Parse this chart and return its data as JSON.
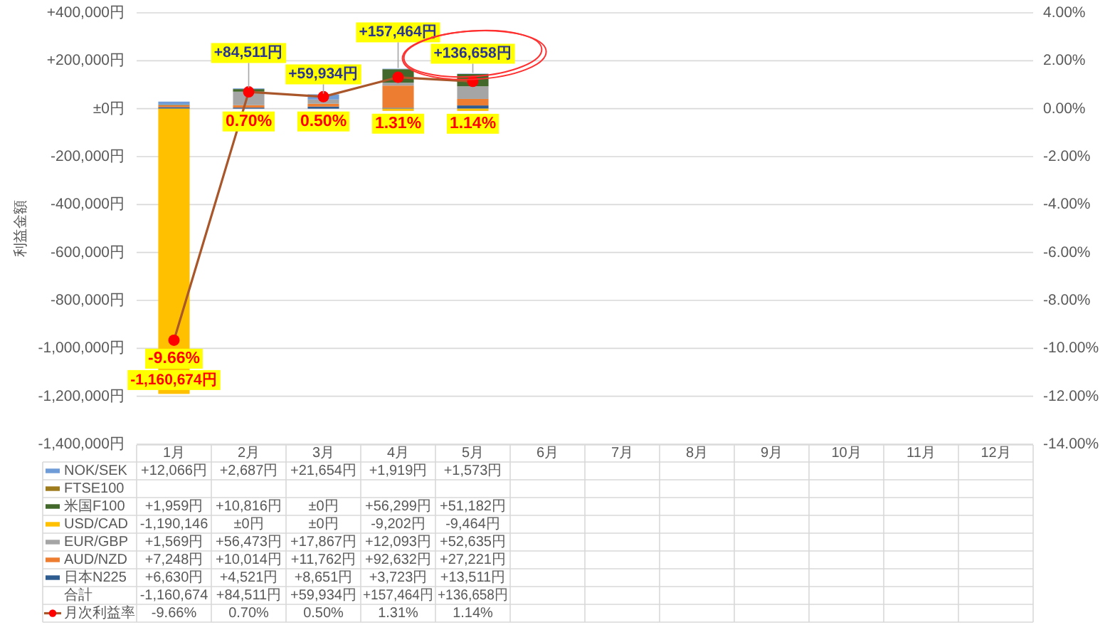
{
  "chart_data": {
    "type": "bar",
    "stacked": true,
    "ylabel": "利益金額",
    "categories": [
      "1月",
      "2月",
      "3月",
      "4月",
      "5月",
      "6月",
      "7月",
      "8月",
      "9月",
      "10月",
      "11月",
      "12月"
    ],
    "series": [
      {
        "name": "日本N225",
        "color": "#2e5c91",
        "values": [
          6630,
          4521,
          8651,
          3723,
          13511,
          null,
          null,
          null,
          null,
          null,
          null,
          null
        ],
        "value_labels": [
          "+6,630円",
          "+4,521円",
          "+8,651円",
          "+3,723円",
          "+13,511円",
          null,
          null,
          null,
          null,
          null,
          null,
          null
        ]
      },
      {
        "name": "AUD/NZD",
        "color": "#ed7d31",
        "values": [
          7248,
          10014,
          11762,
          92632,
          27221,
          null,
          null,
          null,
          null,
          null,
          null,
          null
        ],
        "value_labels": [
          "+7,248円",
          "+10,014円",
          "+11,762円",
          "+92,632円",
          "+27,221円",
          null,
          null,
          null,
          null,
          null,
          null,
          null
        ]
      },
      {
        "name": "EUR/GBP",
        "color": "#a5a5a5",
        "values": [
          1569,
          56473,
          17867,
          12093,
          52635,
          null,
          null,
          null,
          null,
          null,
          null,
          null
        ],
        "value_labels": [
          "+1,569円",
          "+56,473円",
          "+17,867円",
          "+12,093円",
          "+52,635円",
          null,
          null,
          null,
          null,
          null,
          null,
          null
        ]
      },
      {
        "name": "USD/CAD",
        "color": "#ffc000",
        "values": [
          -1190146,
          0,
          0,
          -9202,
          -9464,
          null,
          null,
          null,
          null,
          null,
          null,
          null
        ],
        "value_labels": [
          "-1,190,146",
          "±0円",
          "±0円",
          "-9,202円",
          "-9,464円",
          null,
          null,
          null,
          null,
          null,
          null,
          null
        ]
      },
      {
        "name": "米国F100",
        "color": "#43682b",
        "values": [
          1959,
          10816,
          0,
          56299,
          51182,
          null,
          null,
          null,
          null,
          null,
          null,
          null
        ],
        "value_labels": [
          "+1,959円",
          "+10,816円",
          "±0円",
          "+56,299円",
          "+51,182円",
          null,
          null,
          null,
          null,
          null,
          null,
          null
        ]
      },
      {
        "name": "FTSE100",
        "color": "#9e7b1d",
        "values": [
          null,
          null,
          null,
          null,
          null,
          null,
          null,
          null,
          null,
          null,
          null,
          null
        ]
      },
      {
        "name": "NOK/SEK",
        "color": "#6f9bd6",
        "values": [
          12066,
          2687,
          21654,
          1919,
          1573,
          null,
          null,
          null,
          null,
          null,
          null,
          null
        ],
        "value_labels": [
          "+12,066円",
          "+2,687円",
          "+21,654円",
          "+1,919円",
          "+1,573円",
          null,
          null,
          null,
          null,
          null,
          null,
          null
        ]
      },
      {
        "name": "月次利益率",
        "type": "line",
        "axis": "y2",
        "color": "#a9562a",
        "colors": [
          "#ff0000",
          "#ff0000",
          "#ff0000",
          "#ff0000",
          "#ff0000",
          null,
          null,
          null,
          null,
          null,
          null,
          null
        ],
        "values": [
          -9.66,
          0.7,
          0.5,
          1.31,
          1.14,
          null,
          null,
          null,
          null,
          null,
          null,
          null
        ],
        "value_labels": [
          "-9.66%",
          "0.70%",
          "0.50%",
          "1.31%",
          "1.14%",
          null,
          null,
          null,
          null,
          null,
          null,
          null
        ]
      }
    ],
    "totals": [
      "-1,160,674円",
      "+84,511円",
      "+59,934円",
      "+157,464円",
      "+136,658円",
      null,
      null,
      null,
      null,
      null,
      null,
      null
    ],
    "annotations": [
      "合計",
      "-1,160,674",
      "+84,511円",
      "+59,934円",
      "+157,464円",
      "+136,658円"
    ],
    "ylim": [
      -1400000,
      400000
    ],
    "yticks": [
      {
        "value": 400000,
        "label": "+400,000円"
      },
      {
        "value": 200000,
        "label": "+200,000円"
      },
      {
        "value": 0,
        "label": "±0円"
      },
      {
        "value": -200000,
        "label": "-200,000円"
      },
      {
        "value": -400000,
        "label": "-400,000円"
      },
      {
        "value": -600000,
        "label": "-600,000円"
      },
      {
        "value": -800000,
        "label": "-800,000円"
      },
      {
        "value": -1000000,
        "label": "-1,000,000円"
      },
      {
        "value": -1200000,
        "label": "-1,200,000円"
      },
      {
        "value": -1400000,
        "label": "-1,400,000円"
      }
    ],
    "y2lim": [
      -14,
      4
    ],
    "y2ticks": [
      {
        "value": 4,
        "label": "4.00%"
      },
      {
        "value": 2,
        "label": "2.00%"
      },
      {
        "value": 0,
        "label": "0.00%"
      },
      {
        "value": -2,
        "label": "-2.00%"
      },
      {
        "value": -4,
        "label": "-4.00%"
      },
      {
        "value": -6,
        "label": "-6.00%"
      },
      {
        "value": -8,
        "label": "-8.00%"
      },
      {
        "value": -10,
        "label": "-10.00%"
      },
      {
        "value": -12,
        "label": "-12.00%"
      },
      {
        "value": -14,
        "label": "-14.00%"
      }
    ],
    "grid": "y",
    "legend": "bottom",
    "marker": "circle"
  }
}
